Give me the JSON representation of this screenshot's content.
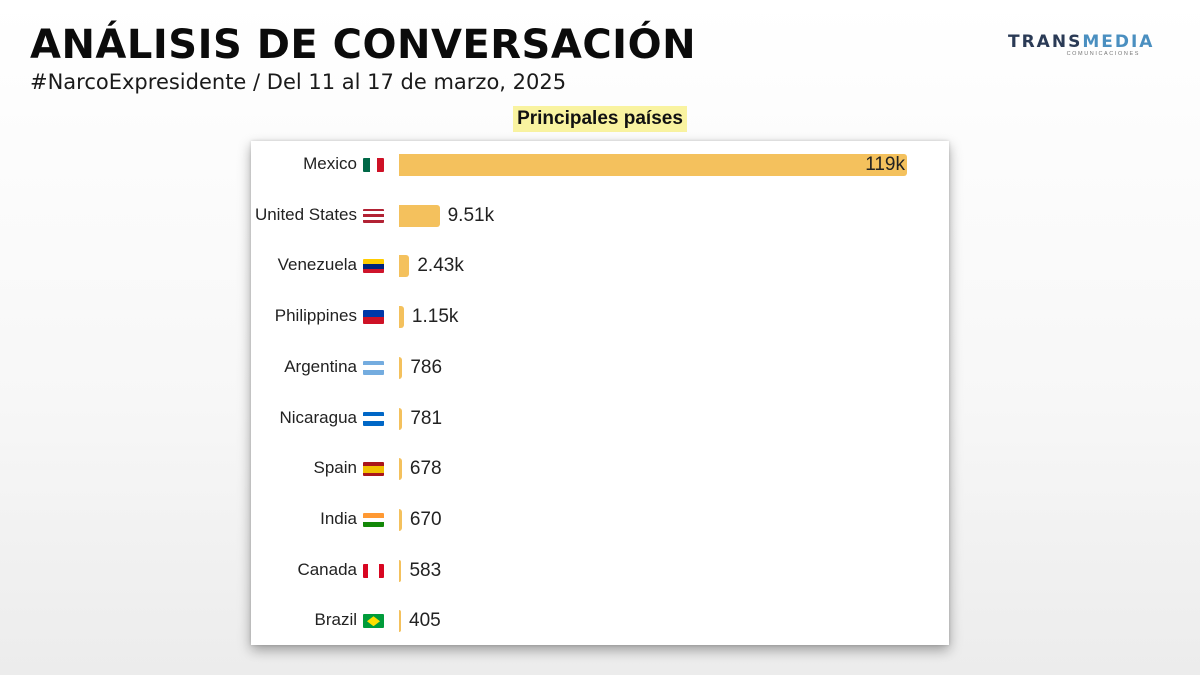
{
  "header": {
    "title": "ANÁLISIS DE CONVERSACIÓN",
    "subtitle": "#NarcoExpresidente / Del 11 al 17 de marzo, 2025"
  },
  "logo": {
    "part1": "TRANS",
    "part2": "MEDIA",
    "sub": "COMUNICACIONES"
  },
  "colors": {
    "bar": "#f4c15d",
    "heading_highlight": "#f9f3a0"
  },
  "chart_data": {
    "type": "bar",
    "orientation": "horizontal",
    "title": "Principales países",
    "categories": [
      "Mexico",
      "United States",
      "Venezuela",
      "Philippines",
      "Argentina",
      "Nicaragua",
      "Spain",
      "India",
      "Canada",
      "Brazil"
    ],
    "values": [
      119000,
      9510,
      2430,
      1150,
      786,
      781,
      678,
      670,
      583,
      405
    ],
    "value_labels": [
      "119k",
      "9.51k",
      "2.43k",
      "1.15k",
      "786",
      "781",
      "678",
      "670",
      "583",
      "405"
    ],
    "flags": [
      "mexico-flag-icon",
      "us-flag-icon",
      "venezuela-flag-icon",
      "philippines-flag-icon",
      "argentina-flag-icon",
      "nicaragua-flag-icon",
      "spain-flag-icon",
      "india-flag-icon",
      "canada-flag-icon",
      "brazil-flag-icon"
    ],
    "xlim": [
      0,
      119000
    ],
    "grid": false,
    "legend": "none"
  }
}
